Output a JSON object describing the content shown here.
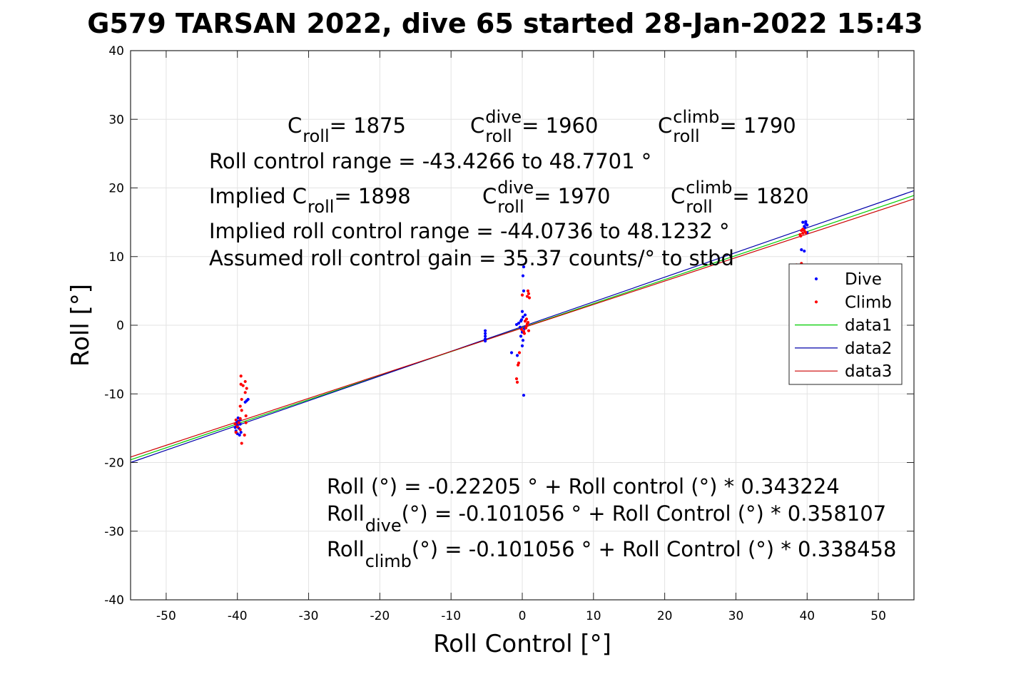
{
  "chart_data": {
    "type": "scatter",
    "title": "G579 TARSAN 2022, dive 65 started 28-Jan-2022 15:43",
    "xlabel": "Roll Control [°]",
    "ylabel": "Roll [°]",
    "xlim": [
      -55,
      55
    ],
    "ylim": [
      -40,
      40
    ],
    "xticks": [
      -50,
      -40,
      -30,
      -20,
      -10,
      0,
      10,
      20,
      30,
      40,
      50
    ],
    "yticks": [
      -40,
      -30,
      -20,
      -10,
      0,
      10,
      20,
      30,
      40
    ],
    "grid": true,
    "legend_position": "right",
    "colors": {
      "dive": "#0000ff",
      "climb": "#ff0000",
      "data1": "#00cc00",
      "data2": "#0000aa",
      "data3": "#cc0000"
    },
    "series": [
      {
        "name": "Dive",
        "kind": "points",
        "points": [
          [
            -39.9,
            -14.0
          ],
          [
            -40.0,
            -14.6
          ],
          [
            -39.8,
            -15.0
          ],
          [
            -40.2,
            -15.4
          ],
          [
            -39.6,
            -13.8
          ],
          [
            -40.1,
            -14.2
          ],
          [
            -39.7,
            -16.0
          ],
          [
            -40.3,
            -14.9
          ],
          [
            -39.5,
            -15.6
          ],
          [
            -38.9,
            -11.2
          ],
          [
            -38.7,
            -11.0
          ],
          [
            -38.5,
            -10.8
          ],
          [
            -39.9,
            -13.5
          ],
          [
            -40.0,
            -15.8
          ],
          [
            -39.6,
            -14.4
          ],
          [
            -5.2,
            -0.8
          ],
          [
            -5.2,
            -1.2
          ],
          [
            -5.2,
            -1.6
          ],
          [
            -5.2,
            -2.0
          ],
          [
            -5.2,
            -2.3
          ],
          [
            -1.5,
            -4.0
          ],
          [
            0.2,
            8.5
          ],
          [
            0.1,
            7.2
          ],
          [
            0.2,
            5.0
          ],
          [
            0.0,
            2.0
          ],
          [
            0.1,
            1.2
          ],
          [
            -0.2,
            0.6
          ],
          [
            -0.5,
            0.3
          ],
          [
            -0.8,
            0.1
          ],
          [
            -0.3,
            -0.3
          ],
          [
            0.3,
            -0.5
          ],
          [
            0.0,
            -1.0
          ],
          [
            -0.2,
            -1.6
          ],
          [
            0.1,
            -2.2
          ],
          [
            0.0,
            -3.0
          ],
          [
            0.2,
            -10.2
          ],
          [
            -0.7,
            -4.4
          ],
          [
            0.4,
            1.5
          ],
          [
            0.5,
            -0.2
          ],
          [
            -0.1,
            0.8
          ],
          [
            39.4,
            15.0
          ],
          [
            39.8,
            14.8
          ],
          [
            39.6,
            14.4
          ],
          [
            40.0,
            14.6
          ],
          [
            39.5,
            13.9
          ],
          [
            39.7,
            14.2
          ],
          [
            39.2,
            11.0
          ],
          [
            39.6,
            10.8
          ],
          [
            40.0,
            13.5
          ],
          [
            39.8,
            15.1
          ]
        ]
      },
      {
        "name": "Climb",
        "kind": "points",
        "points": [
          [
            -39.5,
            -7.4
          ],
          [
            -39.5,
            -8.6
          ],
          [
            -39.2,
            -8.8
          ],
          [
            -38.9,
            -8.2
          ],
          [
            -38.7,
            -9.2
          ],
          [
            -38.9,
            -9.8
          ],
          [
            -39.4,
            -10.8
          ],
          [
            -39.6,
            -11.8
          ],
          [
            -39.4,
            -12.4
          ],
          [
            -40.2,
            -13.8
          ],
          [
            -39.8,
            -14.2
          ],
          [
            -40.0,
            -14.8
          ],
          [
            -39.6,
            -15.2
          ],
          [
            -40.2,
            -15.6
          ],
          [
            -39.0,
            -16.0
          ],
          [
            -39.4,
            -17.2
          ],
          [
            -38.8,
            -14.2
          ],
          [
            -40.3,
            -14.4
          ],
          [
            -39.6,
            -13.6
          ],
          [
            -38.8,
            -13.2
          ],
          [
            -0.5,
            -5.5
          ],
          [
            -0.6,
            -5.8
          ],
          [
            -0.8,
            -7.8
          ],
          [
            -0.7,
            -8.3
          ],
          [
            -0.4,
            -4.0
          ],
          [
            0.0,
            4.4
          ],
          [
            0.8,
            5.0
          ],
          [
            0.9,
            4.6
          ],
          [
            1.0,
            4.0
          ],
          [
            0.7,
            4.2
          ],
          [
            0.4,
            0.6
          ],
          [
            0.7,
            0.2
          ],
          [
            0.5,
            -0.4
          ],
          [
            0.9,
            -0.8
          ],
          [
            0.3,
            -1.2
          ],
          [
            -0.1,
            -0.6
          ],
          [
            0.6,
            -0.1
          ],
          [
            0.8,
            0.4
          ],
          [
            0.2,
            -0.9
          ],
          [
            0.6,
            0.9
          ],
          [
            38.5,
            8.8
          ],
          [
            38.9,
            8.6
          ],
          [
            39.2,
            9.0
          ],
          [
            39.0,
            13.2
          ],
          [
            39.4,
            13.4
          ],
          [
            39.6,
            13.8
          ],
          [
            39.2,
            13.8
          ],
          [
            39.8,
            13.5
          ],
          [
            39.1,
            13.0
          ],
          [
            39.4,
            14.0
          ]
        ]
      },
      {
        "name": "data1",
        "kind": "line",
        "x": [
          -55,
          55
        ],
        "y": [
          -19.6,
          18.9
        ]
      },
      {
        "name": "data2",
        "kind": "line",
        "x": [
          -55,
          55
        ],
        "y": [
          -20.0,
          19.6
        ]
      },
      {
        "name": "data3",
        "kind": "line",
        "x": [
          -55,
          55
        ],
        "y": [
          -19.2,
          18.4
        ]
      }
    ]
  },
  "annotations": {
    "line1": [
      {
        "base": "C",
        "sub": "roll",
        "sup": "",
        "value": " = 1875"
      },
      {
        "base": "C",
        "sub": "roll",
        "sup": "dive",
        "value": " = 1960"
      },
      {
        "base": "C",
        "sub": "roll",
        "sup": "climb",
        "value": " = 1790"
      }
    ],
    "line2": "Roll control range = -43.4266 to 48.7701 °",
    "line3": [
      {
        "base": "Implied C",
        "sub": "roll",
        "sup": "",
        "value": " = 1898"
      },
      {
        "base": "C",
        "sub": "roll",
        "sup": "dive",
        "value": " = 1970"
      },
      {
        "base": "C",
        "sub": "roll",
        "sup": "climb",
        "value": " = 1820"
      }
    ],
    "line4": "Implied roll control range = -44.0736 to 48.1232 °",
    "line5": "Assumed roll control gain = 35.37 counts/° to stbd",
    "eq1": "Roll (°) = -0.22205 ° + Roll control (°) * 0.343224",
    "eq2": {
      "base": "Roll",
      "sub": "dive",
      "rest": " (°) = -0.101056 ° + Roll Control (°) * 0.358107"
    },
    "eq3": {
      "base": "Roll",
      "sub": "climb",
      "rest": " (°) = -0.101056 ° + Roll Control (°) * 0.338458"
    }
  }
}
